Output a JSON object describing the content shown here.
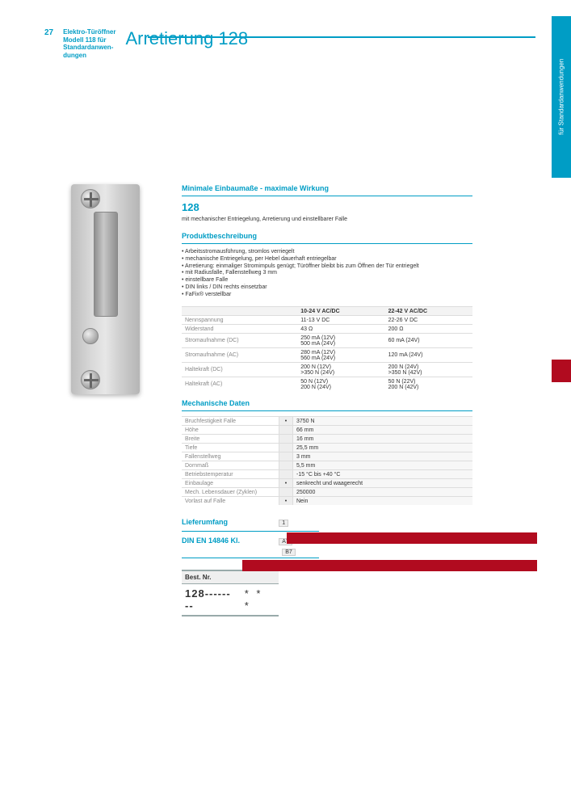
{
  "page_number": "27",
  "side_tab": "für Standardanwendungen",
  "left_header": {
    "line1": "Elektro-Türöffner",
    "line2": "Modell 118 für",
    "line3": "Standardanwen-",
    "line4": "dungen"
  },
  "title": "Arretierung 128",
  "subtitle": "Minimale Einbaumaße - maximale Wirkung",
  "s1_title": "128",
  "s1_text": "mit mechanischer Entriegelung, Arretierung und einstellbarer Falle",
  "s2_title": "Produktbeschreibung",
  "s2_lines": [
    "• Arbeitsstromausführung, stromlos verriegelt",
    "• mechanische Entriegelung, per Hebel dauerhaft entriegelbar",
    "• Arretierung: einmaliger Stromimpuls genügt; Türöffner bleibt bis zum Öffnen der Tür entriegelt",
    "• mit Radiusfalle, Fallenstellweg 3 mm",
    "• einstellbare Falle",
    "• DIN links / DIN rechts einsetzbar",
    "• FaFix® verstellbar"
  ],
  "power_table": {
    "headers": [
      "",
      "10-24 V AC/DC",
      "22-42 V AC/DC"
    ],
    "rows": [
      [
        "Nennspannung",
        "11-13 V DC",
        "22-26 V DC"
      ],
      [
        "Widerstand",
        "43 Ω",
        "200 Ω"
      ],
      [
        "Stromaufnahme (DC)",
        "250 mA (12V)\n500 mA (24V)",
        "60 mA (24V)"
      ],
      [
        "Stromaufnahme (AC)",
        "280 mA (12V)\n560 mA (24V)",
        "120 mA (24V)"
      ],
      [
        "Haltekraft (DC)",
        "200 N (12V)\n>350 N (24V)",
        "200 N (24V)\n>350 N (42V)"
      ],
      [
        "Haltekraft (AC)",
        "50 N (12V)\n200 N (24V)",
        "50 N (22V)\n200 N (42V)"
      ]
    ]
  },
  "mech_title": "Mechanische Daten",
  "mech_rows": [
    {
      "label": "Bruchfestigkeit Falle",
      "dot": "•",
      "value": "3750 N"
    },
    {
      "label": "Höhe",
      "dot": "",
      "value": "66 mm"
    },
    {
      "label": "Breite",
      "dot": "",
      "value": "16 mm"
    },
    {
      "label": "Tiefe",
      "dot": "",
      "value": "25,5 mm"
    },
    {
      "label": "Fallenstellweg",
      "dot": "",
      "value": "3 mm"
    },
    {
      "label": "Dornmaß",
      "dot": "",
      "value": "5,5 mm"
    },
    {
      "label": "Betriebstemperatur",
      "dot": "",
      "value": "-15 °C bis +40 °C"
    },
    {
      "label": "Einbaulage",
      "dot": "•",
      "value": "senkrecht und waagerecht"
    },
    {
      "label": "Mech. Lebensdauer (Zyklen)",
      "dot": "",
      "value": "250000"
    },
    {
      "label": "Vorlast auf Falle",
      "dot": "•",
      "value": "Nein"
    }
  ],
  "liefer_title": "Lieferumfang",
  "liefer_val": "1",
  "norm_title": "DIN EN 14846 Kl.",
  "norm_codes": [
    "A7",
    "B7"
  ],
  "order": {
    "head": "Best. Nr.",
    "num": "128--------",
    "stars": "* * *"
  },
  "colors": {
    "brand": "#009dc5",
    "accent": "#b10b1f",
    "grey_bg": "#f3f3f3"
  }
}
